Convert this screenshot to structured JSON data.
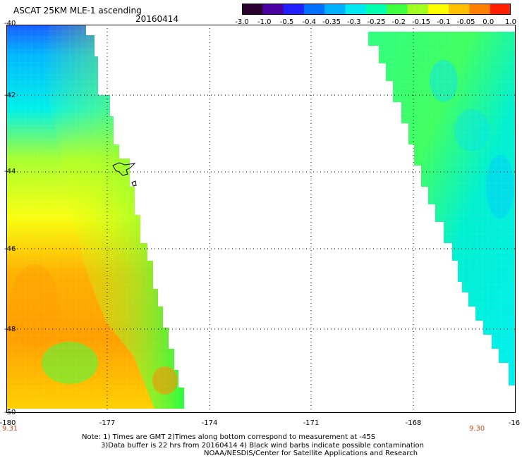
{
  "title": "ASCAT 25KM MLE-1 ascending",
  "date": "20160414",
  "colorbar": {
    "ticks": [
      "-3.0",
      "-1.0",
      "-0.5",
      "-0.4",
      "-0.35",
      "-0.3",
      "-0.25",
      "-0.2",
      "-0.15",
      "-0.1",
      "-0.05",
      "0.0",
      "1.0"
    ],
    "colors": [
      "#2b0030",
      "#4a00a0",
      "#2020ff",
      "#0070ff",
      "#00b0ff",
      "#00e8f0",
      "#00ffb0",
      "#40ff40",
      "#a0ff20",
      "#ffff00",
      "#ffc000",
      "#ff8000",
      "#ff2000"
    ]
  },
  "lat_labels": [
    "-40",
    "-42",
    "-44",
    "-46",
    "-48",
    "-50"
  ],
  "lon_labels": [
    "-180",
    "-177",
    "-174",
    "-171",
    "-168",
    "-16"
  ],
  "time_labels": [
    "9.31",
    "9.30"
  ],
  "notes": [
    "Note: 1) Times are GMT 2)Times along bottom correspond to measurement at -45S",
    "3)Data buffer is 22 hrs from 20160414 4) Black wind barbs indicate possible contamination",
    "NOAA/NESDIS/Center for Satellite Applications and Research"
  ]
}
